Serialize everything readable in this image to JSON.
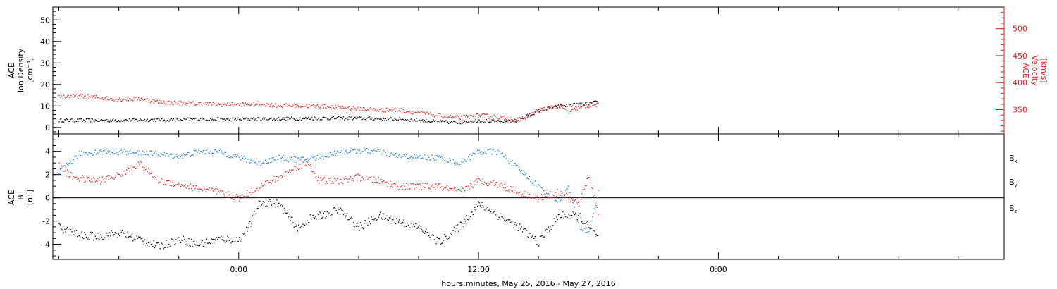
{
  "chart_data": [
    {
      "type": "scatter",
      "panel": "top",
      "title": "",
      "ylabel_left": [
        "ACE",
        "Ion Density",
        "[cm⁻³]"
      ],
      "ylabel_right": [
        "ACE",
        "Velocity",
        "[km/s]"
      ],
      "ylim": [
        -3,
        56
      ],
      "ylim_right": [
        305,
        540
      ],
      "y_ticks": [
        0,
        10,
        20,
        30,
        40,
        50
      ],
      "y_tick_labels": [
        "0",
        "10",
        "20",
        "30",
        "40",
        "50"
      ],
      "y_ticks_right": [
        350,
        400,
        450,
        500
      ],
      "y_tick_labels_right": [
        "350",
        "400",
        "450",
        "500"
      ],
      "colors": {
        "density": "#000000",
        "velocity": "#e0201c"
      },
      "series": [
        {
          "axis": "left",
          "color": "#000000",
          "x": [
            -9,
            -6,
            -4,
            -2,
            0,
            2,
            4,
            6,
            8,
            9,
            10,
            11,
            12,
            13,
            14,
            15,
            16,
            17,
            18
          ],
          "values": [
            3.5,
            3.5,
            3.8,
            4,
            4,
            4.2,
            4.5,
            4.5,
            4,
            3.5,
            2.8,
            2.5,
            3.5,
            2.8,
            3.5,
            8,
            10,
            11,
            12
          ]
        },
        {
          "axis": "right",
          "color": "#e0201c",
          "x": [
            -9,
            -8,
            -7,
            -6,
            -5,
            -4,
            -3,
            -2,
            -1,
            0,
            1,
            2,
            3,
            4,
            5,
            6,
            7,
            8,
            9,
            10,
            11,
            12,
            13,
            14,
            14.5,
            15,
            16,
            16.5,
            17,
            18
          ],
          "values": [
            375,
            376,
            373,
            370,
            371,
            365,
            363,
            362,
            360,
            360,
            362,
            358,
            358,
            357,
            355,
            353,
            350,
            350,
            345,
            340,
            335,
            340,
            337,
            332,
            340,
            350,
            358,
            345,
            355,
            360
          ]
        }
      ]
    },
    {
      "type": "scatter",
      "panel": "bottom",
      "title": "",
      "ylabel": [
        "ACE",
        "B",
        "[nT]"
      ],
      "ylim": [
        -5.3,
        5.5
      ],
      "y_ticks": [
        -4,
        -2,
        0,
        2,
        4
      ],
      "y_tick_labels": [
        "-4",
        "-2",
        "0",
        "2",
        "4"
      ],
      "legend": [
        "Bx",
        "By",
        "Bz"
      ],
      "colors": {
        "Bx": "#000000",
        "By": "#1a7fdc",
        "Bz": "#e0201c"
      },
      "series": [
        {
          "name": "Bx",
          "color": "#000000",
          "x": [
            -9,
            -8,
            -7,
            -6,
            -5,
            -4,
            -3,
            -2,
            -1,
            0,
            0.5,
            1,
            1.5,
            2,
            3,
            3.5,
            4,
            5,
            6,
            7,
            8,
            9,
            10,
            11,
            12,
            13,
            14,
            15,
            16,
            17,
            18
          ],
          "values": [
            -2.5,
            -3.2,
            -3.3,
            -3,
            -3.5,
            -4.2,
            -3.5,
            -4,
            -3.5,
            -3.6,
            -2.5,
            -0.5,
            -0.3,
            -0.5,
            -2.7,
            -1.8,
            -1.5,
            -1,
            -2.5,
            -1.5,
            -2,
            -2.5,
            -3.8,
            -2.5,
            -0.5,
            -1.5,
            -2.5,
            -3.8,
            -1.5,
            -1.5,
            -3.5
          ]
        },
        {
          "name": "By",
          "color": "#1a7fdc",
          "x": [
            -9,
            -8,
            -7,
            -6,
            -5,
            -4,
            -3,
            -2,
            -1,
            0,
            1,
            2,
            3,
            4,
            5,
            6,
            7,
            8,
            9,
            10,
            11,
            12,
            13,
            14,
            15,
            16,
            16.5,
            17,
            17.5,
            18
          ],
          "values": [
            2.2,
            3.8,
            4,
            4,
            3.9,
            3.8,
            3.6,
            4,
            4,
            3.5,
            3,
            3.5,
            3.3,
            3.5,
            4,
            4.1,
            4,
            3.6,
            3.5,
            3.5,
            3,
            4,
            4,
            2.5,
            1,
            -0.3,
            1,
            -2.5,
            -3,
            0.8
          ]
        },
        {
          "name": "Bz",
          "color": "#e0201c",
          "x": [
            -9,
            -8.5,
            -8,
            -7,
            -6,
            -5,
            -4,
            -3,
            -2,
            -1,
            0,
            1,
            2,
            3,
            3.5,
            4,
            5,
            6,
            7,
            8,
            9,
            10,
            11,
            12,
            13,
            14,
            15,
            16,
            17,
            17.5,
            18
          ],
          "values": [
            2.8,
            2,
            1.7,
            1.5,
            2,
            3,
            1.5,
            1.2,
            0.8,
            0.5,
            0,
            1,
            1.8,
            2.8,
            3,
            1.5,
            1.5,
            1.8,
            1.5,
            1,
            1,
            1,
            0.5,
            1.5,
            1.2,
            0.5,
            0,
            0.5,
            -0.5,
            2,
            -1.5
          ]
        }
      ]
    }
  ],
  "x_axis": {
    "range": [
      -9.3,
      38.3
    ],
    "major_ticks": [
      0,
      12,
      24
    ],
    "major_tick_labels": [
      "0:00",
      "12:00",
      "0:00"
    ],
    "minor_step": 3,
    "xlabel": "hours:minutes, May 25, 2016 - May 27, 2016"
  },
  "legend_labels": [
    {
      "base": "B",
      "sub": "x",
      "color": "#000000"
    },
    {
      "base": "B",
      "sub": "y",
      "color": "#1a7fdc"
    },
    {
      "base": "B",
      "sub": "z",
      "color": "#e0201c"
    }
  ]
}
